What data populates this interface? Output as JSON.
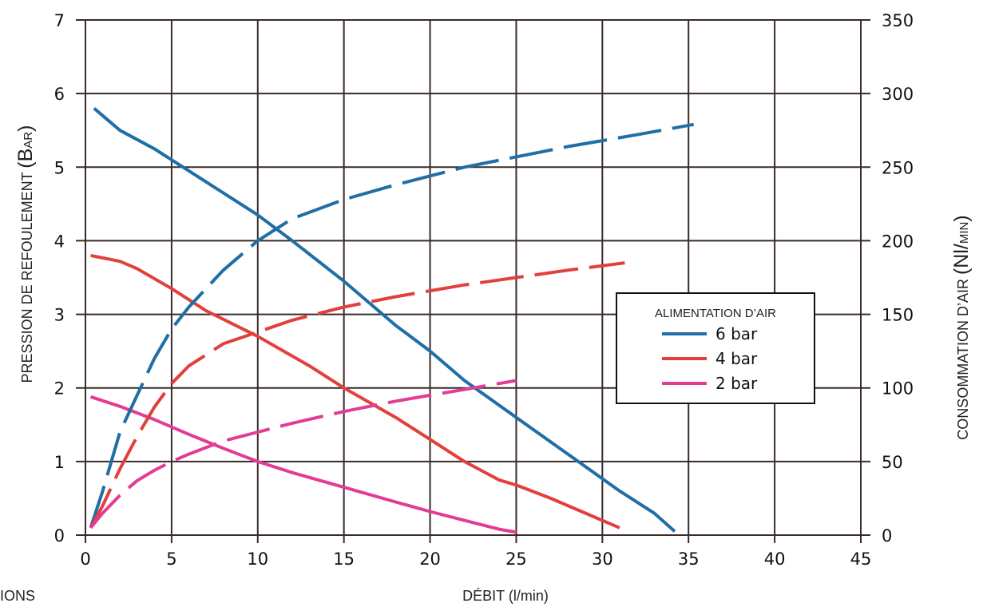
{
  "chart_data": {
    "type": "line",
    "title": "",
    "xlabel": "DÉBIT (l/min)",
    "ylabel": "PRESSION DE REFOULEMENT (BAR)",
    "ylabel_parts": {
      "main": "PRESSION DE REFOULEMENT ",
      "paren_open": "(",
      "big": "B",
      "small": "AR",
      "paren_close": ")"
    },
    "y2label": "CONSOMMATION D’AIR (NL/MIN)",
    "y2label_parts": {
      "main": "CONSOMMATION D’AIR ",
      "paren_open": "(",
      "big": "Nl",
      "slash": "/",
      "small": "MIN",
      "paren_close": ")"
    },
    "xlim": [
      0,
      45
    ],
    "ylim": [
      0,
      7
    ],
    "y2lim": [
      0,
      350
    ],
    "xticks": [
      0,
      5,
      10,
      15,
      20,
      25,
      30,
      35,
      40,
      45
    ],
    "yticks": [
      0,
      1,
      2,
      3,
      4,
      5,
      6,
      7
    ],
    "y2ticks": [
      0,
      50,
      100,
      150,
      200,
      250,
      300,
      350
    ],
    "grid": true,
    "legend": {
      "title": "ALIMENTATION D’AIR",
      "position": "right",
      "entries": [
        {
          "label": "6 bar",
          "color": "#1f6fa6"
        },
        {
          "label": "4 bar",
          "color": "#e2403a"
        },
        {
          "label": "2 bar",
          "color": "#e23c95"
        }
      ]
    },
    "series": [
      {
        "name": "6 bar",
        "kind": "pressure",
        "axis": "left",
        "style": "solid",
        "color": "#1f6fa6",
        "x": [
          0.5,
          2,
          4,
          6,
          8,
          10,
          12,
          15,
          18,
          20,
          22,
          25,
          28,
          31,
          33,
          34.2
        ],
        "y": [
          5.8,
          5.5,
          5.25,
          4.95,
          4.65,
          4.35,
          4.0,
          3.45,
          2.85,
          2.5,
          2.1,
          1.6,
          1.1,
          0.6,
          0.3,
          0.05
        ]
      },
      {
        "name": "4 bar",
        "kind": "pressure",
        "axis": "left",
        "style": "solid",
        "color": "#e2403a",
        "x": [
          0.3,
          2,
          3,
          5,
          7,
          10,
          13,
          15,
          18,
          20,
          22,
          24,
          25,
          27,
          29,
          31
        ],
        "y": [
          3.8,
          3.72,
          3.62,
          3.35,
          3.05,
          2.7,
          2.3,
          2.0,
          1.6,
          1.3,
          1.0,
          0.75,
          0.68,
          0.5,
          0.3,
          0.1
        ]
      },
      {
        "name": "2 bar",
        "kind": "pressure",
        "axis": "left",
        "style": "solid",
        "color": "#e23c95",
        "x": [
          0.3,
          2,
          4,
          6,
          8,
          10,
          12,
          15,
          18,
          20,
          22,
          24,
          25
        ],
        "y": [
          1.88,
          1.75,
          1.57,
          1.37,
          1.18,
          1.0,
          0.85,
          0.65,
          0.45,
          0.32,
          0.2,
          0.08,
          0.04
        ]
      },
      {
        "name": "6 bar",
        "kind": "air",
        "axis": "right",
        "style": "dashed",
        "color": "#1f6fa6",
        "x": [
          0.3,
          1,
          2,
          3,
          4,
          5,
          6,
          8,
          10,
          12,
          15,
          18,
          20,
          22,
          25,
          28,
          30,
          32,
          35.3
        ],
        "y": [
          5,
          30,
          70,
          95,
          120,
          140,
          155,
          180,
          200,
          215,
          228,
          238,
          244,
          250,
          257,
          264,
          268,
          272,
          279
        ]
      },
      {
        "name": "4 bar",
        "kind": "air",
        "axis": "right",
        "style": "dashed",
        "color": "#e2403a",
        "x": [
          0.3,
          1,
          2,
          3,
          4,
          5,
          6,
          8,
          10,
          12,
          15,
          18,
          20,
          22,
          25,
          28,
          31.3
        ],
        "y": [
          5,
          20,
          45,
          67,
          87,
          103,
          115,
          130,
          138,
          146,
          155,
          162,
          166,
          170,
          175,
          180,
          185
        ]
      },
      {
        "name": "2 bar",
        "kind": "air",
        "axis": "right",
        "style": "dashed",
        "color": "#e23c95",
        "x": [
          0.3,
          1,
          2,
          3,
          4,
          5,
          6,
          8,
          10,
          12,
          15,
          18,
          20,
          22,
          25
        ],
        "y": [
          5,
          15,
          27,
          37,
          44,
          50,
          55,
          64,
          70,
          76,
          84,
          91,
          95,
          99,
          105
        ]
      }
    ]
  },
  "page": {
    "edge_text": "IONS"
  }
}
